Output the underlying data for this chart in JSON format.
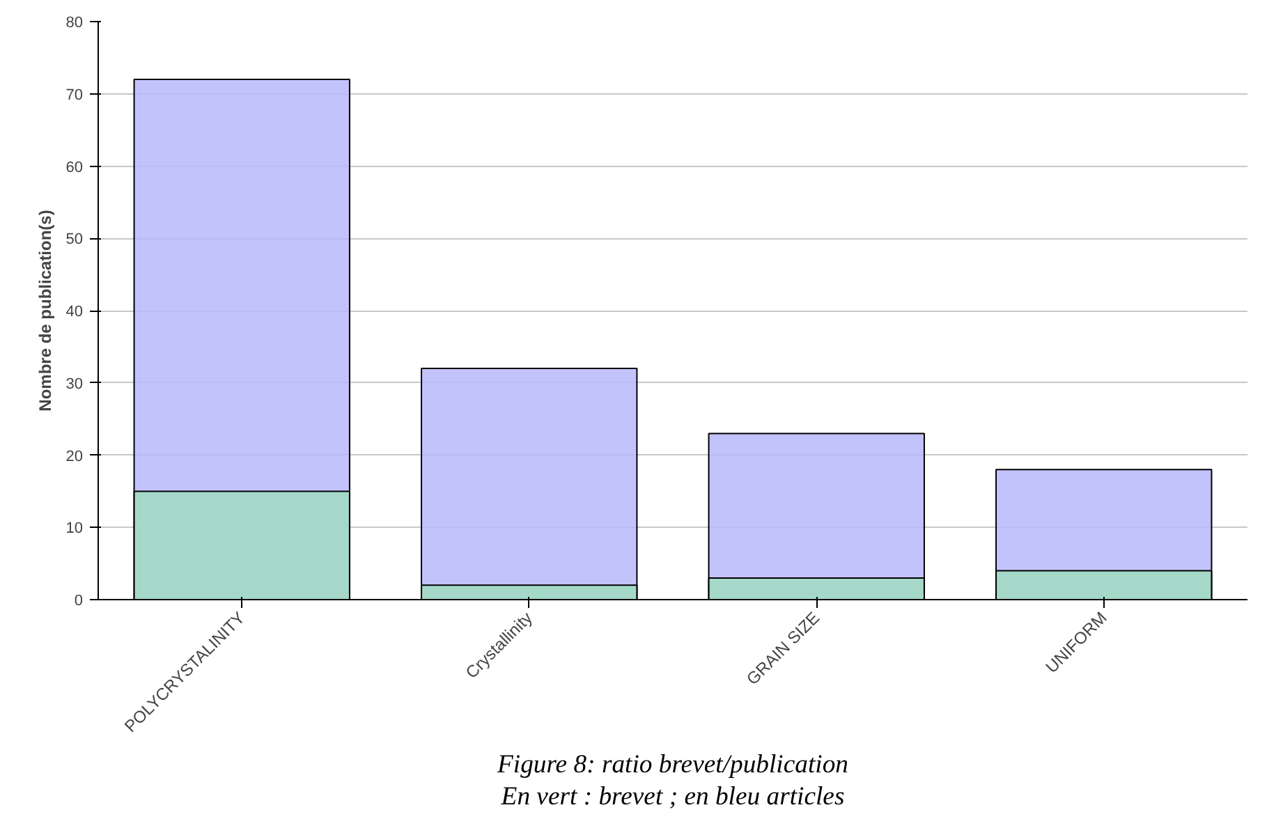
{
  "chart_data": {
    "type": "bar",
    "ylabel": "Nombre de publication(s)",
    "categories": [
      "POLYCRYSTALINITY",
      "Crystallinity",
      "GRAIN SIZE",
      "UNIFORM"
    ],
    "series": [
      {
        "color": "#b8b8fc",
        "values": [
          72,
          32,
          23,
          18
        ]
      },
      {
        "color": "#a0dcc0",
        "values": [
          15,
          2,
          3,
          4
        ]
      }
    ],
    "ylim": [
      0,
      80
    ],
    "yticks": [
      0,
      10,
      20,
      30,
      40,
      50,
      60,
      70,
      80
    ],
    "grid": "y",
    "annotations": [
      "Figure 8: ratio brevet/publication",
      "En vert : brevet ; en bleu articles"
    ]
  }
}
